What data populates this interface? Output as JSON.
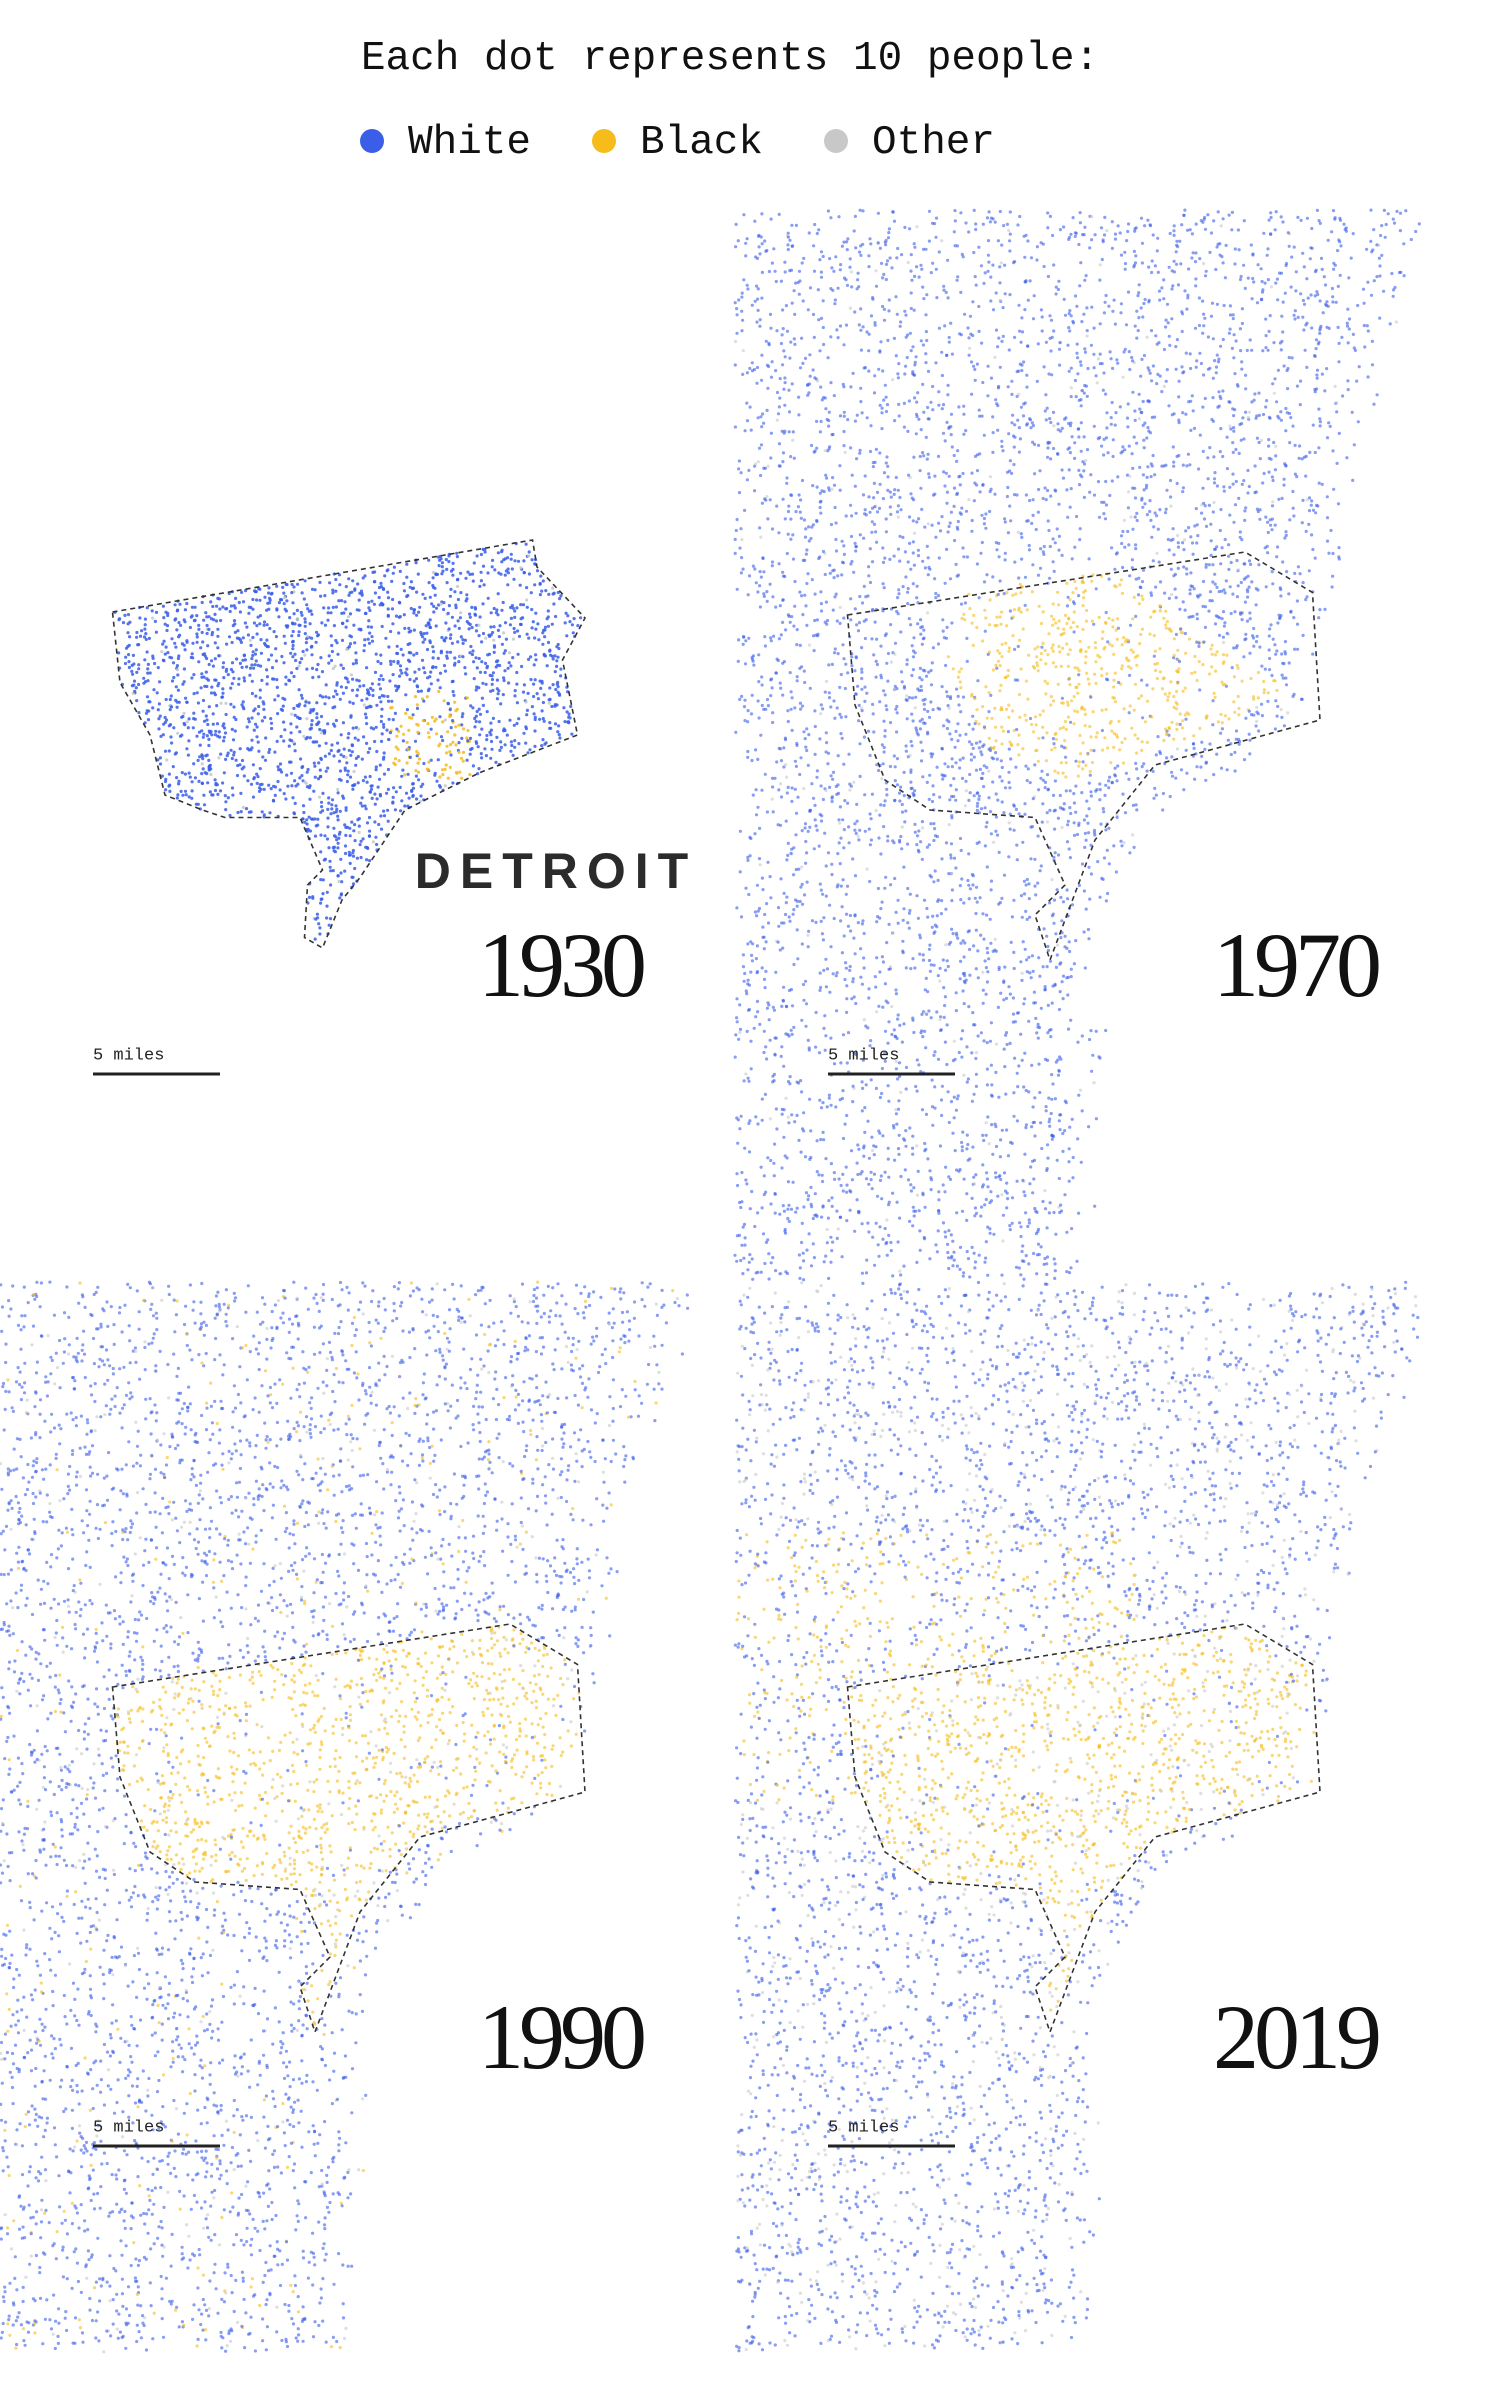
{
  "header": {
    "title": "Each dot represents 10 people:",
    "legend": [
      {
        "label": "White",
        "color": "#3a5ee8"
      },
      {
        "label": "Black",
        "color": "#f5bc1c"
      },
      {
        "label": "Other",
        "color": "#c8c8c8"
      }
    ]
  },
  "city_label": "DETROIT",
  "panels": [
    {
      "year": "1930",
      "scale_label": "5 miles"
    },
    {
      "year": "1970",
      "scale_label": "5 miles"
    },
    {
      "year": "1990",
      "scale_label": "5 miles"
    },
    {
      "year": "2019",
      "scale_label": "5 miles"
    }
  ]
}
